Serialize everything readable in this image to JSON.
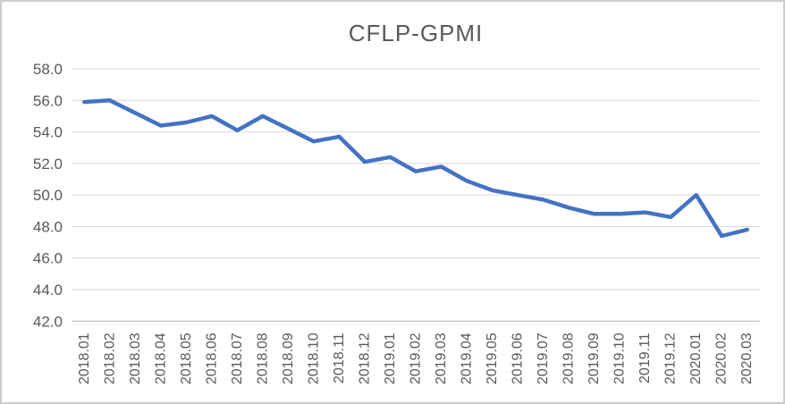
{
  "window": {
    "background_color": "#FFFFFF",
    "frame_border_color": "#CCCCCC"
  },
  "chart_data": {
    "type": "line",
    "title": "CFLP-GPMI",
    "categories": [
      "2018.01",
      "2018.02",
      "2018.03",
      "2018.04",
      "2018.05",
      "2018.06",
      "2018.07",
      "2018.08",
      "2018.09",
      "2018.10",
      "2018.11",
      "2018.12",
      "2019.01",
      "2019.02",
      "2019.03",
      "2019.04",
      "2019.05",
      "2019.06",
      "2019.07",
      "2019.08",
      "2019.09",
      "2019.10",
      "2019.11",
      "2019.12",
      "2020.01",
      "2020.02",
      "2020.03"
    ],
    "series": [
      {
        "name": "CFLP-GPMI",
        "values": [
          55.9,
          56.0,
          55.2,
          54.4,
          54.6,
          55.0,
          54.1,
          55.0,
          54.2,
          53.4,
          53.7,
          52.1,
          52.4,
          51.5,
          51.8,
          50.9,
          50.3,
          50.0,
          49.7,
          49.2,
          48.8,
          48.8,
          48.9,
          48.6,
          50.0,
          47.4,
          47.8
        ]
      }
    ],
    "xlabel": "",
    "ylabel": "",
    "ylim": [
      42.0,
      58.0
    ],
    "ytick_step": 2.0,
    "ytick_labels": [
      "42.0",
      "44.0",
      "46.0",
      "48.0",
      "50.0",
      "52.0",
      "54.0",
      "56.0",
      "58.0"
    ],
    "grid": "horizontal",
    "legend_position": "none",
    "colors": {
      "line": "#4472C4",
      "gridline": "#D9D9D9",
      "axis_line": "#BFBFBF",
      "tick_text": "#595959",
      "title_text": "#595959"
    }
  }
}
